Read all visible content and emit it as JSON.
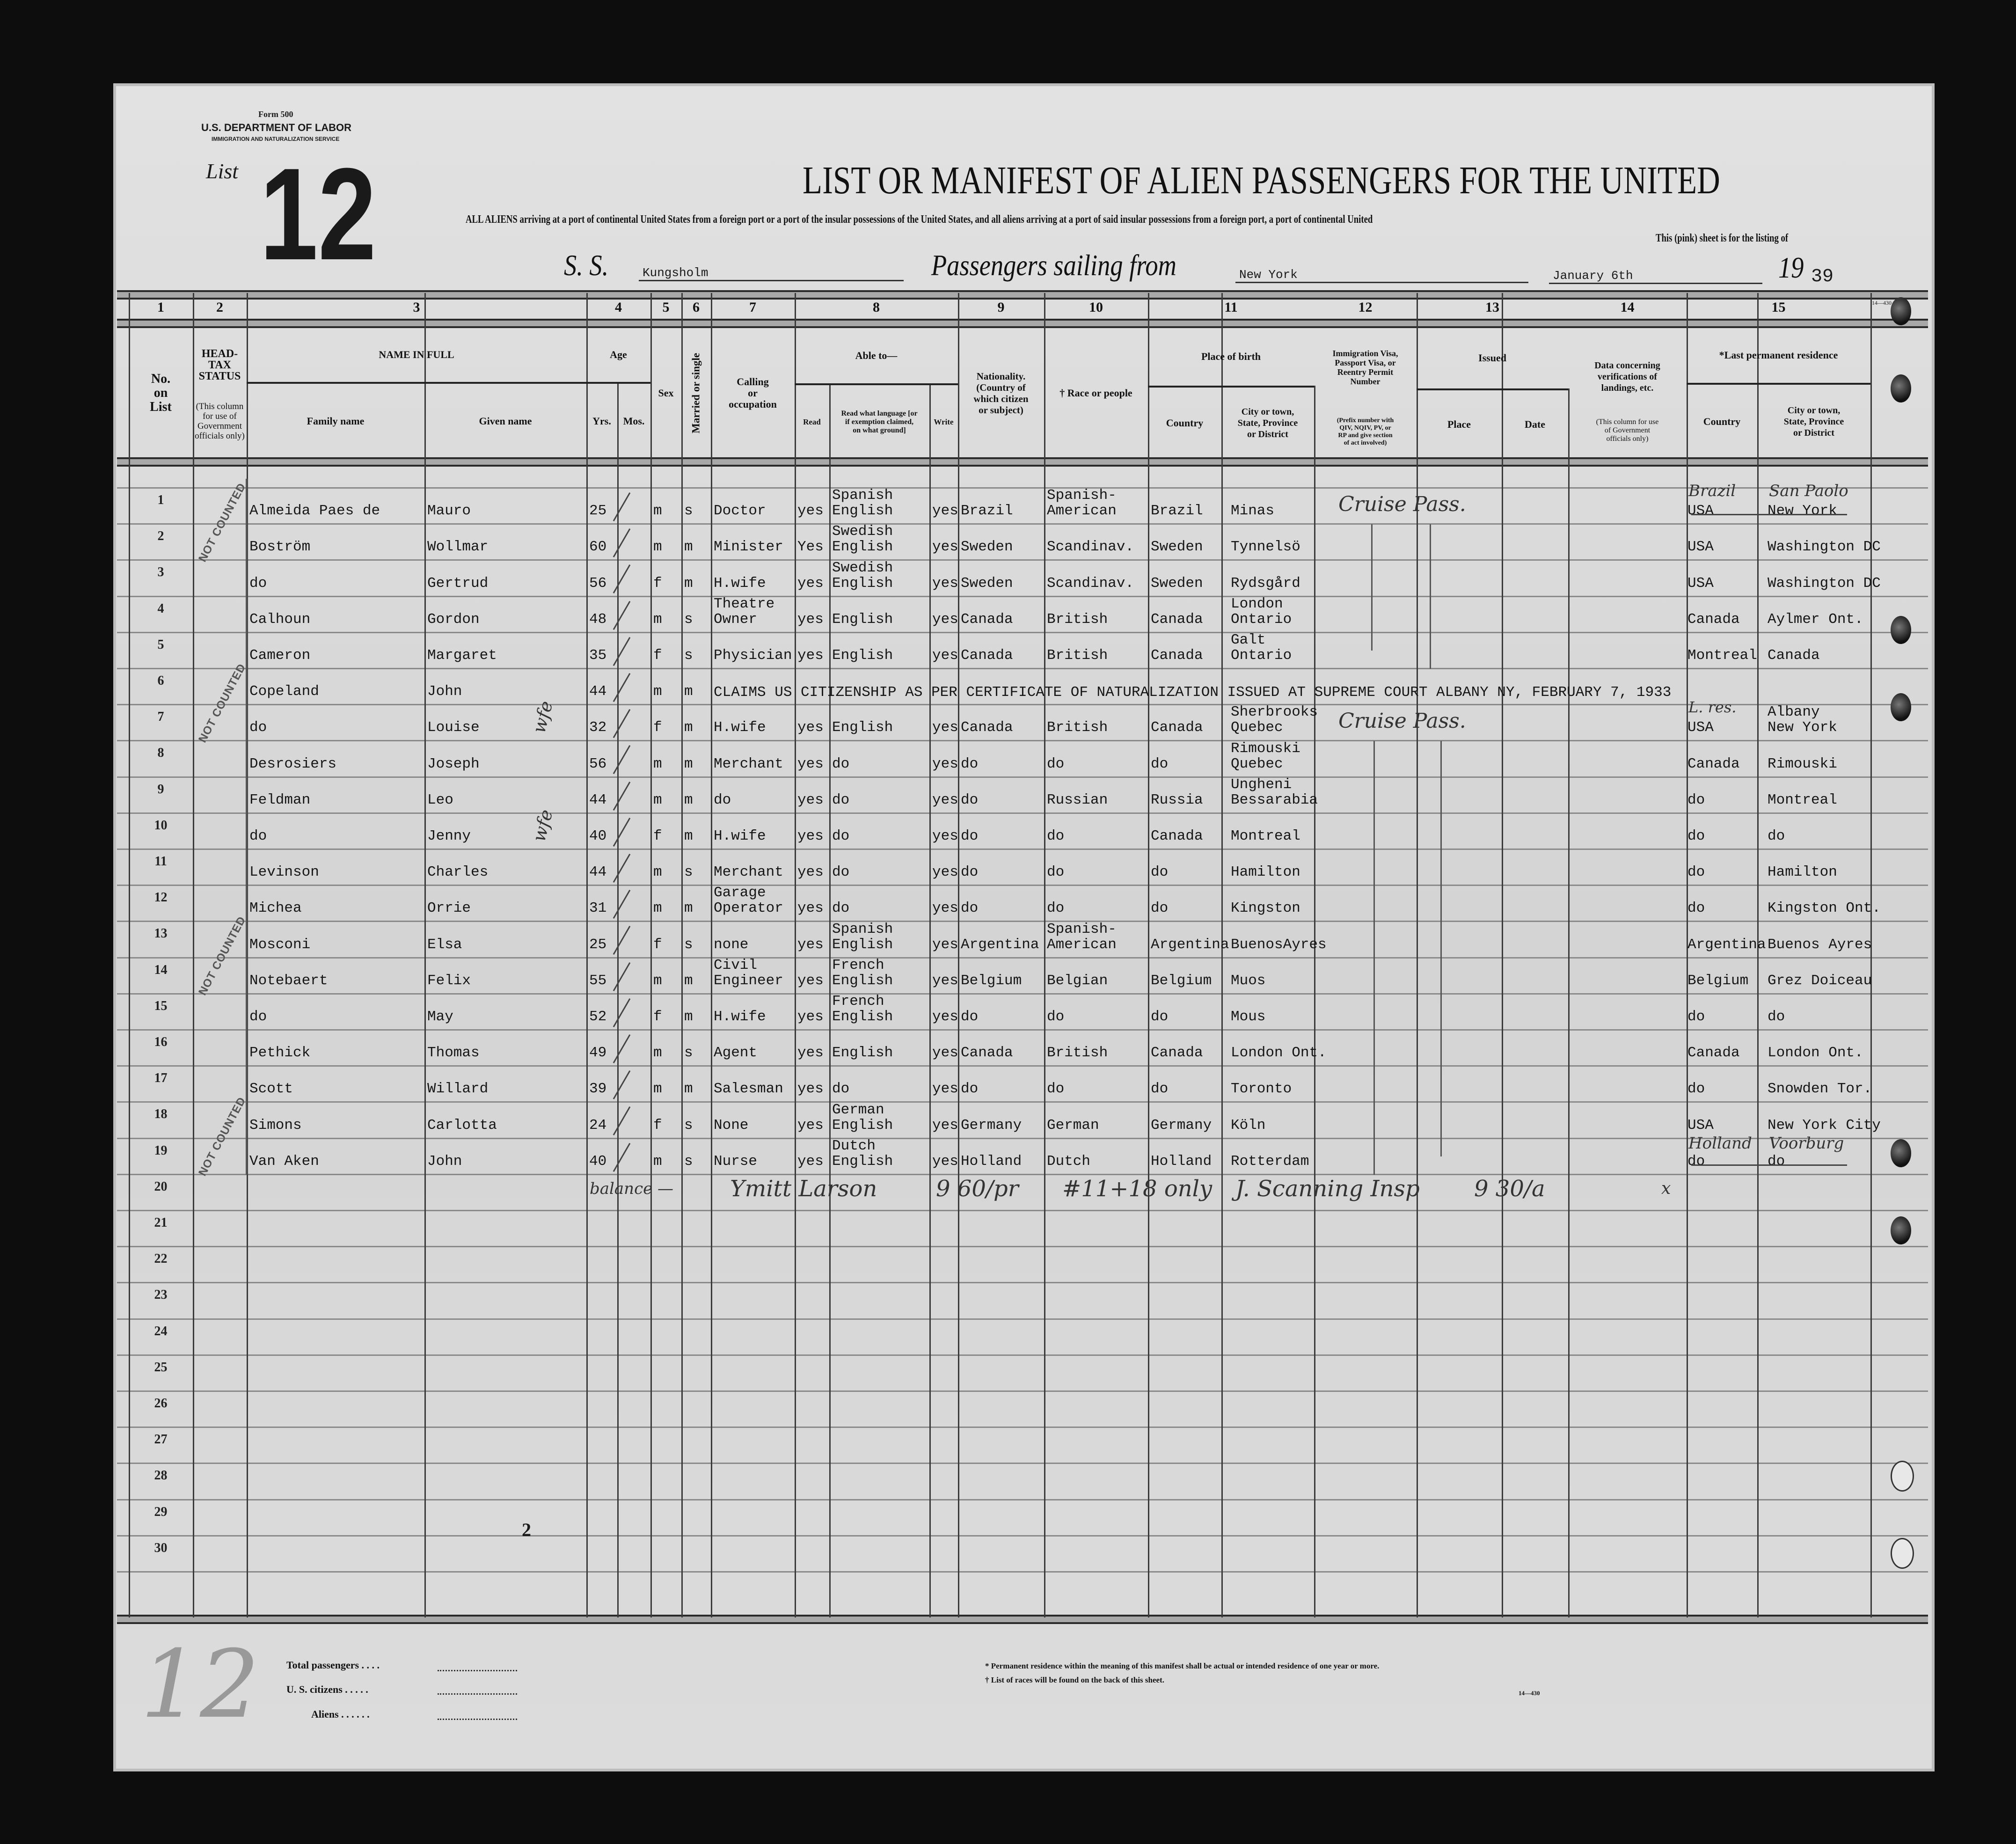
{
  "form": {
    "form_no": "Form 500",
    "department": "U.S. DEPARTMENT OF LABOR",
    "service": "IMMIGRATION AND NATURALIZATION SERVICE",
    "list_label": "List",
    "list_number": "12",
    "title": "LIST OR MANIFEST OF ALIEN PASSENGERS FOR THE UNITED",
    "instruction": "ALL ALIENS arriving at a port of continental United States from a foreign port or a port of the insular possessions of the United States, and all aliens arriving at a port of said insular possessions from a foreign port, a port of continental United",
    "pink_sheet": "This (pink) sheet is for the listing of",
    "ss_label": "S. S.",
    "ship": "Kungsholm",
    "sailing_label": "Passengers sailing from",
    "port": "New York",
    "date": "January 6th",
    "year_prefix": "19",
    "year_suffix": "39",
    "print_code": "14—430"
  },
  "column_numbers": [
    "1",
    "2",
    "3",
    "4",
    "5",
    "6",
    "7",
    "8",
    "9",
    "10",
    "11",
    "12",
    "13",
    "14",
    "15"
  ],
  "headers": {
    "no_on_list": "No.\non\nList",
    "head_tax": "HEAD-TAX\nSTATUS",
    "head_tax_note": "(This column\nfor use of\nGovernment\nofficials only)",
    "name_in_full": "NAME IN FULL",
    "family_name": "Family name",
    "given_name": "Given name",
    "age": "Age",
    "yrs": "Yrs.",
    "mos": "Mos.",
    "sex": "Sex",
    "married": "Married or single",
    "calling": "Calling\nor\noccupation",
    "able_to": "Able to—",
    "read": "Read",
    "read_language": "Read what language [or\nif exemption claimed,\non what ground]",
    "write": "Write",
    "nationality": "Nationality.\n(Country of\nwhich citizen\nor subject)",
    "race": "† Race or people",
    "place_of_birth": "Place of birth",
    "birth_country": "Country",
    "birth_city": "City or town,\nState, Province\nor District",
    "visa": "Immigration Visa,\nPassport Visa, or\nReentry Permit\nNumber",
    "visa_note": "(Prefix number with\nQIV, NQIV, PV, or\nRP and give section\nof act involved)",
    "issued": "Issued",
    "issued_place": "Place",
    "issued_date": "Date",
    "landing": "Data concerning\nverifications of\nlandings, etc.",
    "landing_note": "(This column for use\nof Government\nofficials only)",
    "last_residence": "*Last permanent residence",
    "res_country": "Country",
    "res_city": "City or town,\nState, Province\nor District"
  },
  "row_numbers": [
    "1",
    "2",
    "3",
    "4",
    "5",
    "6",
    "7",
    "8",
    "9",
    "10",
    "11",
    "12",
    "13",
    "14",
    "15",
    "16",
    "17",
    "18",
    "19",
    "20",
    "21",
    "22",
    "23",
    "24",
    "25",
    "26",
    "27",
    "28",
    "29",
    "30"
  ],
  "rows": [
    {
      "family": "Almeida Paes de",
      "given": "Mauro",
      "yrs": "25",
      "sex": "m",
      "marital": "s",
      "occupation": "Doctor",
      "read": "yes",
      "language": "Spanish\nEnglish",
      "write": "yes",
      "nationality": "Brazil",
      "race": "Spanish-\nAmerican",
      "birth_country": "Brazil",
      "birth_city": "Minas",
      "res_country": "USA",
      "res_city": "New York"
    },
    {
      "family": "Boström",
      "given": "Wollmar",
      "yrs": "60",
      "sex": "m",
      "marital": "m",
      "occupation": "Minister",
      "read": "Yes",
      "language": "Swedish\nEnglish",
      "write": "yes",
      "nationality": "Sweden",
      "race": "Scandinav.",
      "birth_country": "Sweden",
      "birth_city": "Tynnelsö",
      "res_country": "USA",
      "res_city": "Washington DC"
    },
    {
      "family": "do",
      "given": "Gertrud",
      "yrs": "56",
      "sex": "f",
      "marital": "m",
      "occupation": "H.wife",
      "read": "yes",
      "language": "Swedish\nEnglish",
      "write": "yes",
      "nationality": "Sweden",
      "race": "Scandinav.",
      "birth_country": "Sweden",
      "birth_city": "Rydsgård",
      "res_country": "USA",
      "res_city": "Washington DC"
    },
    {
      "family": "Calhoun",
      "given": "Gordon",
      "yrs": "48",
      "sex": "m",
      "marital": "s",
      "occupation": "Theatre\nOwner",
      "read": "yes",
      "language": "English",
      "write": "yes",
      "nationality": "Canada",
      "race": "British",
      "birth_country": "Canada",
      "birth_city": "London\nOntario",
      "res_country": "Canada",
      "res_city": "Aylmer Ont."
    },
    {
      "family": "Cameron",
      "given": "Margaret",
      "yrs": "35",
      "sex": "f",
      "marital": "s",
      "occupation": "Physician",
      "read": "yes",
      "language": "English",
      "write": "yes",
      "nationality": "Canada",
      "race": "British",
      "birth_country": "Canada",
      "birth_city": "Galt\nOntario",
      "res_country": "Montreal",
      "res_city": "Canada"
    },
    {
      "family": "Copeland",
      "given": "John",
      "yrs": "44",
      "sex": "m",
      "marital": "m",
      "remark": "CLAIMS US CITIZENSHIP AS PER CERTIFICATE OF NATURALIZATION ISSUED AT SUPREME COURT ALBANY NY, FEBRUARY 7, 1933"
    },
    {
      "family": "do",
      "given": "Louise",
      "yrs": "32",
      "sex": "f",
      "marital": "m",
      "occupation": "H.wife",
      "read": "yes",
      "language": "English",
      "write": "yes",
      "nationality": "Canada",
      "race": "British",
      "birth_country": "Canada",
      "birth_city": "Sherbrooks\nQuebec",
      "res_country": "USA",
      "res_city": "Albany\nNew York"
    },
    {
      "family": "Desrosiers",
      "given": "Joseph",
      "yrs": "56",
      "sex": "m",
      "marital": "m",
      "occupation": "Merchant",
      "read": "yes",
      "language": "do",
      "write": "yes",
      "nationality": "do",
      "race": "do",
      "birth_country": "do",
      "birth_city": "Rimouski\nQuebec",
      "res_country": "Canada",
      "res_city": "Rimouski"
    },
    {
      "family": "Feldman",
      "given": "Leo",
      "yrs": "44",
      "sex": "m",
      "marital": "m",
      "occupation": "do",
      "read": "yes",
      "language": "do",
      "write": "yes",
      "nationality": "do",
      "race": "Russian",
      "birth_country": "Russia",
      "birth_city": "Ungheni\nBessarabia",
      "res_country": "do",
      "res_city": "Montreal"
    },
    {
      "family": "do",
      "given": "Jenny",
      "yrs": "40",
      "sex": "f",
      "marital": "m",
      "occupation": "H.wife",
      "read": "yes",
      "language": "do",
      "write": "yes",
      "nationality": "do",
      "race": "do",
      "birth_country": "Canada",
      "birth_city": "Montreal",
      "res_country": "do",
      "res_city": "do"
    },
    {
      "family": "Levinson",
      "given": "Charles",
      "yrs": "44",
      "sex": "m",
      "marital": "s",
      "occupation": "Merchant",
      "read": "yes",
      "language": "do",
      "write": "yes",
      "nationality": "do",
      "race": "do",
      "birth_country": "do",
      "birth_city": "Hamilton",
      "res_country": "do",
      "res_city": "Hamilton"
    },
    {
      "family": "Michea",
      "given": "Orrie",
      "yrs": "31",
      "sex": "m",
      "marital": "m",
      "occupation": "Garage\nOperator",
      "read": "yes",
      "language": "do",
      "write": "yes",
      "nationality": "do",
      "race": "do",
      "birth_country": "do",
      "birth_city": "Kingston",
      "res_country": "do",
      "res_city": "Kingston Ont."
    },
    {
      "family": "Mosconi",
      "given": "Elsa",
      "yrs": "25",
      "sex": "f",
      "marital": "s",
      "occupation": "none",
      "read": "yes",
      "language": "Spanish\nEnglish",
      "write": "yes",
      "nationality": "Argentina",
      "race": "Spanish-\nAmerican",
      "birth_country": "Argentina",
      "birth_city": "BuenosAyres",
      "res_country": "Argentina",
      "res_city": "Buenos Ayres"
    },
    {
      "family": "Notebaert",
      "given": "Felix",
      "yrs": "55",
      "sex": "m",
      "marital": "m",
      "occupation": "Civil\nEngineer",
      "read": "yes",
      "language": "French\nEnglish",
      "write": "yes",
      "nationality": "Belgium",
      "race": "Belgian",
      "birth_country": "Belgium",
      "birth_city": "Muos",
      "res_country": "Belgium",
      "res_city": "Grez Doiceau"
    },
    {
      "family": "do",
      "given": "May",
      "yrs": "52",
      "sex": "f",
      "marital": "m",
      "occupation": "H.wife",
      "read": "yes",
      "language": "French\nEnglish",
      "write": "yes",
      "nationality": "do",
      "race": "do",
      "birth_country": "do",
      "birth_city": "Mous",
      "res_country": "do",
      "res_city": "do"
    },
    {
      "family": "Pethick",
      "given": "Thomas",
      "yrs": "49",
      "sex": "m",
      "marital": "s",
      "occupation": "Agent",
      "read": "yes",
      "language": "English",
      "write": "yes",
      "nationality": "Canada",
      "race": "British",
      "birth_country": "Canada",
      "birth_city": "London Ont.",
      "res_country": "Canada",
      "res_city": "London Ont."
    },
    {
      "family": "Scott",
      "given": "Willard",
      "yrs": "39",
      "sex": "m",
      "marital": "m",
      "occupation": "Salesman",
      "read": "yes",
      "language": "do",
      "write": "yes",
      "nationality": "do",
      "race": "do",
      "birth_country": "do",
      "birth_city": "Toronto",
      "res_country": "do",
      "res_city": "Snowden Tor."
    },
    {
      "family": "Simons",
      "given": "Carlotta",
      "yrs": "24",
      "sex": "f",
      "marital": "s",
      "occupation": "None",
      "read": "yes",
      "language": "German\nEnglish",
      "write": "yes",
      "nationality": "Germany",
      "race": "German",
      "birth_country": "Germany",
      "birth_city": "Köln",
      "res_country": "USA",
      "res_city": "New York City"
    },
    {
      "family": "Van Aken",
      "given": "John",
      "yrs": "40",
      "sex": "m",
      "marital": "s",
      "occupation": "Nurse",
      "read": "yes",
      "language": "Dutch\nEnglish",
      "write": "yes",
      "nationality": "Holland",
      "race": "Dutch",
      "birth_country": "Holland",
      "birth_city": "Rotterdam",
      "res_country": "do",
      "res_city": "do"
    }
  ],
  "annotations": {
    "stamps": [
      "NOT COUNTED",
      "NOT COUNTED",
      "NOT COUNTED",
      "NOT COUNTED"
    ],
    "cruise_pass": [
      "Cruise Pass.",
      "Cruise Pass."
    ],
    "wife_marks": [
      "wfe",
      "wfe"
    ],
    "res_corrections": {
      "row1_country": "Brazil",
      "row1_city": "San Paolo",
      "row7": "L. res.",
      "row19_country": "Holland",
      "row19_city": "Voorburg"
    },
    "row20_notes": [
      "balance —",
      "Ymitt Larson",
      "9 60/pr",
      "#11+18 only",
      "J. Scanning Insp",
      "9 30/a",
      "x"
    ],
    "page_mark": "2",
    "margin_mark": "12"
  },
  "footer": {
    "total_passengers": "Total passengers . . . .",
    "us_citizens": "U. S. citizens . . . . .",
    "aliens": "Aliens . . . . . .",
    "note_residence": "* Permanent residence within the meaning of this manifest shall be actual or intended residence of one year or more.",
    "note_races": "† List of races will be found on the back of this sheet.",
    "print_code": "14—430"
  }
}
